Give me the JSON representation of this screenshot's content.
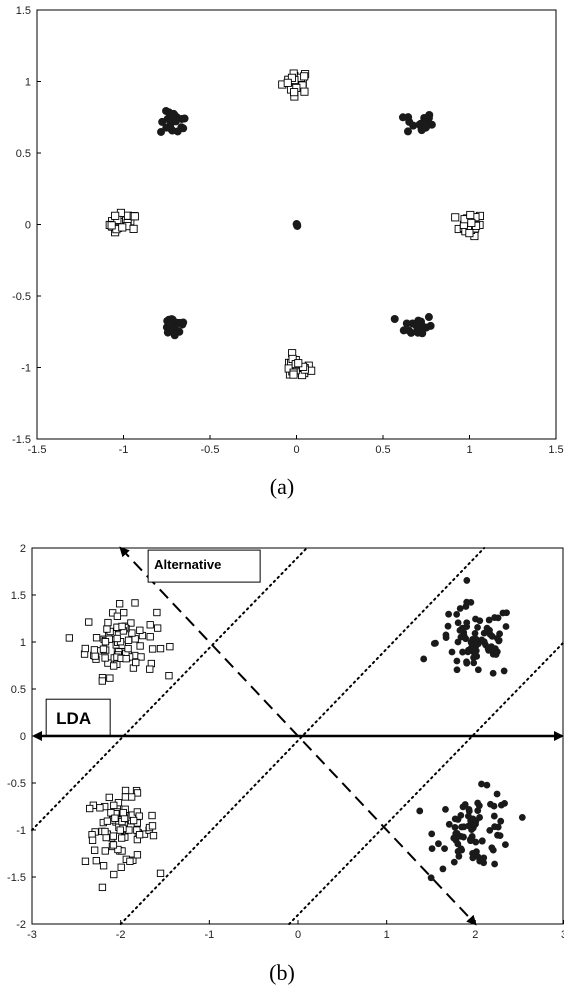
{
  "chart_data": [
    {
      "type": "scatter",
      "panel_label": "(a)",
      "xlim": [
        -1.5,
        1.5
      ],
      "ylim": [
        -1.5,
        1.5
      ],
      "xticks": [
        "-1.5",
        "-1",
        "-0.5",
        "0",
        "0.5",
        "1",
        "1.5"
      ],
      "yticks": [
        "1.5",
        "1",
        "0.5",
        "0",
        "-0.5",
        "-1",
        "-1.5"
      ],
      "grid": false,
      "series": [
        {
          "marker": "open-square",
          "clusters": [
            [
              0,
              1
            ],
            [
              -1,
              0
            ],
            [
              1,
              0
            ],
            [
              0,
              -1
            ]
          ],
          "spread": 0.04
        },
        {
          "marker": "filled-circle",
          "clusters": [
            [
              -0.707,
              0.707
            ],
            [
              0.707,
              0.707
            ],
            [
              -0.707,
              -0.707
            ],
            [
              0.707,
              -0.707
            ],
            [
              0,
              0
            ]
          ],
          "spread": 0.04
        }
      ]
    },
    {
      "type": "scatter",
      "panel_label": "(b)",
      "xlim": [
        -3,
        3
      ],
      "ylim": [
        -2,
        2
      ],
      "xticks": [
        "-3",
        "-2",
        "-1",
        "0",
        "1",
        "2",
        "3"
      ],
      "yticks": [
        "2",
        "1.5",
        "1",
        "0.5",
        "0",
        "-0.5",
        "-1",
        "-1.5",
        "-2"
      ],
      "grid": false,
      "series": [
        {
          "marker": "open-square",
          "clusters": [
            [
              -2,
              1
            ],
            [
              -2,
              -1
            ]
          ],
          "spread_x": 0.2,
          "spread_y": 0.18
        },
        {
          "marker": "filled-circle",
          "clusters": [
            [
              2,
              1
            ],
            [
              2,
              -1
            ]
          ],
          "spread_x": 0.22,
          "spread_y": 0.2
        }
      ],
      "projection_lines": [
        {
          "label": "LDA",
          "style": "solid",
          "from": [
            -3,
            0
          ],
          "to": [
            3,
            0
          ],
          "label_pos": [
            -2.75,
            0.2
          ]
        },
        {
          "label": "Alternative",
          "style": "dashed",
          "from": [
            -2,
            2
          ],
          "to": [
            2,
            -2
          ],
          "label_pos": [
            -1.6,
            1.85
          ]
        }
      ],
      "dotted_lines": [
        {
          "from": [
            -3,
            -1
          ],
          "to": [
            0.1,
            2
          ]
        },
        {
          "from": [
            -2,
            -2
          ],
          "to": [
            2.1,
            2
          ]
        },
        {
          "from": [
            -0.1,
            -2
          ],
          "to": [
            3,
            1
          ]
        }
      ]
    }
  ]
}
